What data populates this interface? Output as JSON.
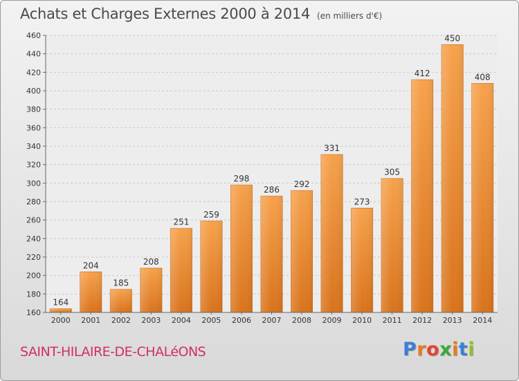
{
  "chart_data": {
    "type": "bar",
    "title": "Achats et Charges Externes 2000 à 2014",
    "unit_label": "(en milliers d'€)",
    "categories": [
      "2000",
      "2001",
      "2002",
      "2003",
      "2004",
      "2005",
      "2006",
      "2007",
      "2008",
      "2009",
      "2010",
      "2011",
      "2012",
      "2013",
      "2014"
    ],
    "values": [
      164,
      204,
      185,
      208,
      251,
      259,
      298,
      286,
      292,
      331,
      273,
      305,
      412,
      450,
      408
    ],
    "ylim": [
      160,
      460
    ],
    "yticks": [
      160,
      180,
      200,
      220,
      240,
      260,
      280,
      300,
      320,
      340,
      360,
      380,
      400,
      420,
      440,
      460
    ],
    "grid": true,
    "bar_color": "#f0953a",
    "xlabel": "",
    "ylabel": ""
  },
  "footer": {
    "city": "SAINT-HILAIRE-DE-CHALéONS",
    "logo": "Proxiti"
  },
  "colors": {
    "city": "#d0305e",
    "logo_letters": [
      "#3b7fd4",
      "#e87a1e",
      "#e2452f",
      "#3aa83a",
      "#e87a1e",
      "#3b7fd4",
      "#8fbf26"
    ]
  }
}
